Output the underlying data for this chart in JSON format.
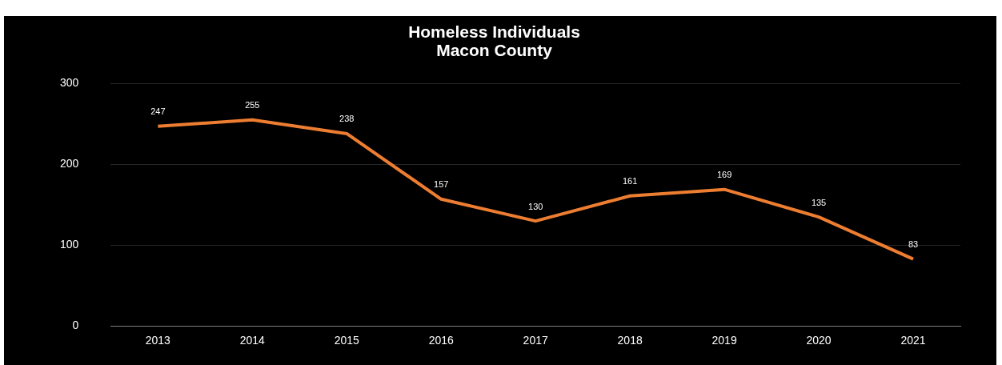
{
  "chart_data": {
    "type": "line",
    "title": "Homeless Individuals\nMacon County",
    "categories": [
      "2013",
      "2014",
      "2015",
      "2016",
      "2017",
      "2018",
      "2019",
      "2020",
      "2021"
    ],
    "series": [
      {
        "color": "#ed7d31",
        "values": [
          247,
          255,
          238,
          157,
          130,
          161,
          169,
          135,
          83
        ]
      }
    ],
    "ylim": [
      0,
      300
    ],
    "yticks": [
      0,
      100,
      200,
      300
    ],
    "grid": "y",
    "data_labels": true,
    "legend": false,
    "marker": "none",
    "line_style": "solid"
  }
}
